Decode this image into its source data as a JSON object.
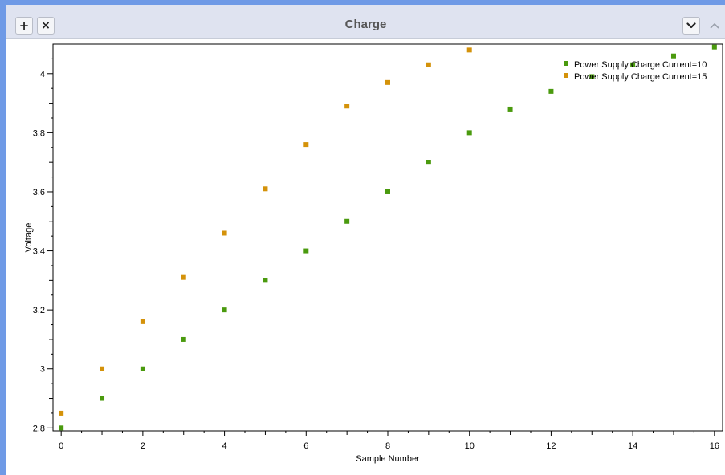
{
  "window": {
    "title": "Charge",
    "add_symbol": "+",
    "close_symbol": "×",
    "accent_color": "#6f9ae6"
  },
  "chart_data": {
    "type": "scatter",
    "xlabel": "Sample Number",
    "ylabel": "Voltage",
    "xlim": [
      -0.2,
      16.2
    ],
    "ylim": [
      2.79,
      4.1
    ],
    "xticks": [
      0,
      2,
      4,
      6,
      8,
      10,
      12,
      14,
      16
    ],
    "yticks": [
      2.8,
      3,
      3.2,
      3.4,
      3.6,
      3.8,
      4
    ],
    "legend_position": "top-right",
    "series": [
      {
        "name": "Power Supply Charge Current=10",
        "color": "#4a9a0e",
        "x": [
          0,
          1,
          2,
          3,
          4,
          5,
          6,
          7,
          8,
          9,
          10,
          11,
          12,
          13,
          14,
          15,
          16
        ],
        "y": [
          2.8,
          2.9,
          3.0,
          3.1,
          3.2,
          3.3,
          3.4,
          3.5,
          3.6,
          3.7,
          3.8,
          3.88,
          3.94,
          3.99,
          4.03,
          4.06,
          4.09
        ]
      },
      {
        "name": "Power Supply Charge Current=15",
        "color": "#d4920a",
        "x": [
          0,
          1,
          2,
          3,
          4,
          5,
          6,
          7,
          8,
          9,
          10
        ],
        "y": [
          2.85,
          3.0,
          3.16,
          3.31,
          3.46,
          3.61,
          3.76,
          3.89,
          3.97,
          4.03,
          4.08
        ]
      }
    ]
  }
}
